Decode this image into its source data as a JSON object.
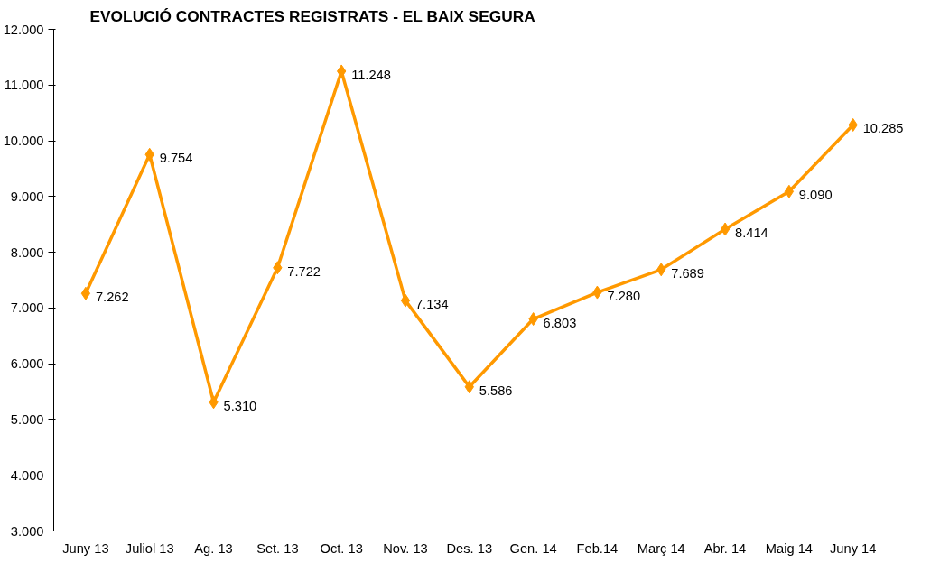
{
  "chart_data": {
    "type": "line",
    "title": "EVOLUCIÓ CONTRACTES REGISTRATS - EL BAIX SEGURA",
    "categories": [
      "Juny 13",
      "Juliol 13",
      "Ag. 13",
      "Set. 13",
      "Oct. 13",
      "Nov. 13",
      "Des. 13",
      "Gen. 14",
      "Feb.14",
      "Març 14",
      "Abr. 14",
      "Maig 14",
      "Juny 14"
    ],
    "series": [
      {
        "color": "#ff9900",
        "values": [
          7262,
          9754,
          5310,
          7722,
          11248,
          7134,
          5586,
          6803,
          7280,
          7689,
          8414,
          9090,
          10285
        ],
        "value_labels": [
          "7.262",
          "9.754",
          "5.310",
          "7.722",
          "11.248",
          "7.134",
          "5.586",
          "6.803",
          "7.280",
          "7.689",
          "8.414",
          "9.090",
          "10.285"
        ]
      }
    ],
    "ylim": [
      3000,
      12000
    ],
    "yticks": [
      {
        "value": 3000,
        "label": "3.000"
      },
      {
        "value": 4000,
        "label": "4.000"
      },
      {
        "value": 5000,
        "label": "5.000"
      },
      {
        "value": 6000,
        "label": "6.000"
      },
      {
        "value": 7000,
        "label": "7.000"
      },
      {
        "value": 8000,
        "label": "8.000"
      },
      {
        "value": 9000,
        "label": "9.000"
      },
      {
        "value": 10000,
        "label": "10.000"
      },
      {
        "value": 11000,
        "label": "11.000"
      },
      {
        "value": 12000,
        "label": "12.000"
      }
    ],
    "marker": "diamond",
    "line_style": "solid",
    "grid": false
  }
}
